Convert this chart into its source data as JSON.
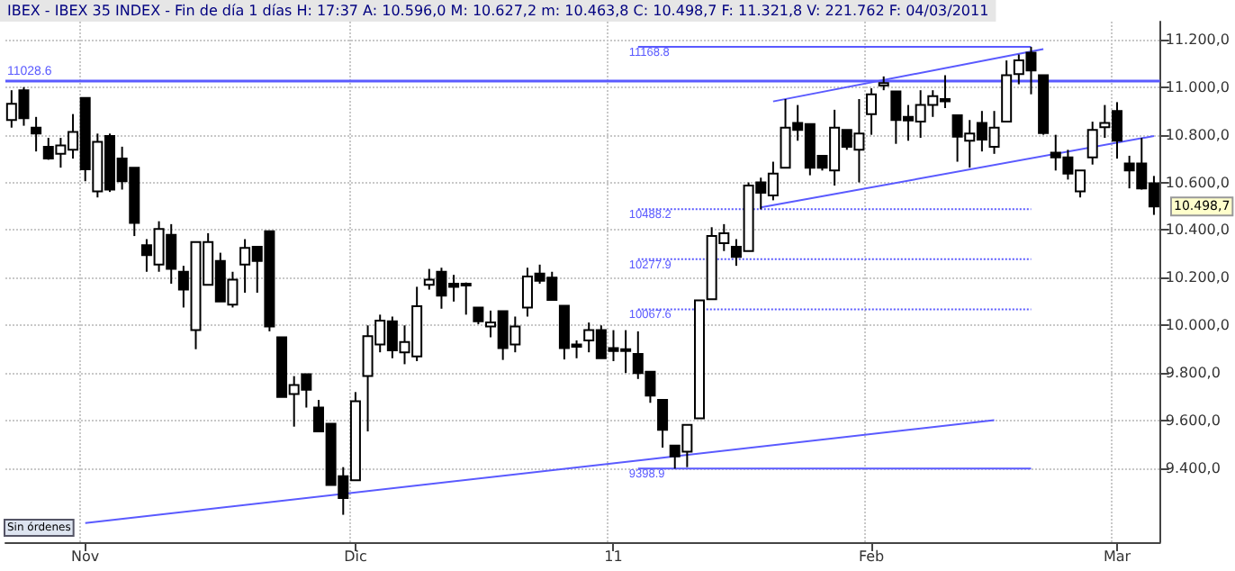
{
  "chart_data": {
    "type": "candlestick",
    "title": "IBEX - IBEX 35 INDEX - Fin de día 1 días H: 17:37 A: 10.596,0 M: 10.627,2 m: 10.463,8 C: 10.498,7 F: 11.321,8 V: 221.762 F: 04/03/2011",
    "categories": [
      null,
      null,
      null,
      null,
      null,
      null,
      "Nov",
      null,
      null,
      null,
      null,
      null,
      null,
      null,
      null,
      null,
      null,
      null,
      null,
      null,
      null,
      null,
      null,
      null,
      null,
      null,
      null,
      null,
      "Dic",
      null,
      null,
      null,
      null,
      null,
      null,
      null,
      null,
      null,
      null,
      null,
      null,
      null,
      null,
      null,
      null,
      null,
      null,
      null,
      null,
      "11",
      null,
      null,
      null,
      null,
      null,
      null,
      null,
      null,
      null,
      null,
      null,
      null,
      null,
      null,
      null,
      null,
      null,
      null,
      null,
      null,
      "Feb",
      null,
      null,
      null,
      null,
      null,
      null,
      null,
      null,
      null,
      null,
      null,
      null,
      null,
      null,
      null,
      null,
      null,
      null,
      null,
      "Mar",
      null,
      null,
      null
    ],
    "color": "#000000",
    "ohlc": [
      [
        10862,
        10987,
        10830,
        10930
      ],
      [
        10987,
        11000,
        10838,
        10870
      ],
      [
        10830,
        10875,
        10730,
        10805
      ],
      [
        10750,
        10787,
        10695,
        10700
      ],
      [
        10720,
        10787,
        10662,
        10755
      ],
      [
        10737,
        10887,
        10700,
        10812
      ],
      [
        10955,
        10955,
        10605,
        10655
      ],
      [
        10562,
        10805,
        10537,
        10770
      ],
      [
        10795,
        10805,
        10560,
        10570
      ],
      [
        10700,
        10750,
        10570,
        10605
      ],
      [
        10662,
        10662,
        10375,
        10430
      ],
      [
        10337,
        10362,
        10225,
        10295
      ],
      [
        10255,
        10437,
        10225,
        10405
      ],
      [
        10380,
        10425,
        10175,
        10237
      ],
      [
        10225,
        10250,
        10075,
        10150
      ],
      [
        9980,
        10350,
        9900,
        10350
      ],
      [
        10170,
        10387,
        10170,
        10350
      ],
      [
        10270,
        10305,
        10100,
        10100
      ],
      [
        10087,
        10225,
        10075,
        10192
      ],
      [
        10255,
        10362,
        10137,
        10325
      ],
      [
        10330,
        10330,
        10137,
        10270
      ],
      [
        10395,
        10395,
        9975,
        9995
      ],
      [
        9950,
        9950,
        9700,
        9700
      ],
      [
        9712,
        9787,
        9575,
        9750
      ],
      [
        9795,
        9795,
        9655,
        9730
      ],
      [
        9655,
        9687,
        9555,
        9555
      ],
      [
        9587,
        9587,
        9330,
        9330
      ],
      [
        9367,
        9405,
        9205,
        9275
      ],
      [
        9350,
        9720,
        9350,
        9682
      ],
      [
        9787,
        10000,
        9555,
        9955
      ],
      [
        9920,
        10045,
        9887,
        10020
      ],
      [
        10017,
        10037,
        9862,
        9895
      ],
      [
        9887,
        10000,
        9837,
        9930
      ],
      [
        9870,
        10162,
        9850,
        10080
      ],
      [
        10170,
        10237,
        10150,
        10192
      ],
      [
        10225,
        10242,
        10070,
        10125
      ],
      [
        10175,
        10212,
        10100,
        10162
      ],
      [
        10175,
        10180,
        10045,
        10170
      ],
      [
        10075,
        10075,
        10005,
        10017
      ],
      [
        9995,
        10062,
        9950,
        10012
      ],
      [
        10060,
        10060,
        9855,
        9905
      ],
      [
        9920,
        10037,
        9887,
        9995
      ],
      [
        10075,
        10242,
        10037,
        10205
      ],
      [
        10217,
        10255,
        10175,
        10187
      ],
      [
        10200,
        10225,
        10107,
        10107
      ],
      [
        10082,
        10082,
        9857,
        9905
      ],
      [
        9920,
        9937,
        9862,
        9910
      ],
      [
        9937,
        10012,
        9887,
        9980
      ],
      [
        9980,
        10000,
        9862,
        9862
      ],
      [
        9905,
        9980,
        9850,
        9892
      ],
      [
        9900,
        9980,
        9800,
        9895
      ],
      [
        9880,
        9975,
        9775,
        9800
      ],
      [
        9805,
        9805,
        9675,
        9705
      ],
      [
        9687,
        9687,
        9487,
        9562
      ],
      [
        9495,
        9495,
        9398.9,
        9450
      ],
      [
        9470,
        9582,
        9405,
        9582
      ],
      [
        9610,
        10105,
        9610,
        10105
      ],
      [
        10110,
        10412,
        10110,
        10375
      ],
      [
        10345,
        10425,
        10312,
        10387
      ],
      [
        10330,
        10362,
        10250,
        10287
      ],
      [
        10312,
        10600,
        10312,
        10587
      ],
      [
        10600,
        10620,
        10487,
        10557
      ],
      [
        10545,
        10687,
        10525,
        10637
      ],
      [
        10662,
        10950,
        10662,
        10830
      ],
      [
        10850,
        10925,
        10775,
        10820
      ],
      [
        10845,
        10845,
        10630,
        10662
      ],
      [
        10712,
        10712,
        10650,
        10662
      ],
      [
        10650,
        10905,
        10587,
        10830
      ],
      [
        10820,
        10820,
        10737,
        10750
      ],
      [
        10737,
        10950,
        10600,
        10805
      ],
      [
        10887,
        10995,
        10800,
        10970
      ],
      [
        11007,
        11045,
        10987,
        11017
      ],
      [
        10982,
        10982,
        10762,
        10862
      ],
      [
        10875,
        10925,
        10775,
        10860
      ],
      [
        10855,
        10987,
        10787,
        10925
      ],
      [
        10925,
        10987,
        10875,
        10962
      ],
      [
        10950,
        11050,
        10912,
        10940
      ],
      [
        10882,
        10882,
        10687,
        10792
      ],
      [
        10775,
        10862,
        10662,
        10805
      ],
      [
        10850,
        10900,
        10730,
        10780
      ],
      [
        10750,
        10900,
        10720,
        10830
      ],
      [
        10855,
        11112,
        10855,
        11050
      ],
      [
        11055,
        11137,
        11012,
        11112
      ],
      [
        11145,
        11168.8,
        10970,
        11070
      ],
      [
        11050,
        11050,
        10800,
        10807
      ],
      [
        10725,
        10800,
        10650,
        10705
      ],
      [
        10705,
        10737,
        10612,
        10637
      ],
      [
        10562,
        10650,
        10537,
        10650
      ],
      [
        10705,
        10855,
        10675,
        10820
      ],
      [
        10832,
        10925,
        10787,
        10850
      ],
      [
        10900,
        10937,
        10700,
        10775
      ],
      [
        10680,
        10712,
        10575,
        10650
      ],
      [
        10680,
        10787,
        10570,
        10575
      ],
      [
        10596,
        10627.2,
        10463.8,
        10498.7
      ]
    ],
    "series": [
      {
        "type": "line",
        "color": "#5a5aff",
        "line_style": "solid",
        "values": [
          null,
          null,
          null,
          null,
          null,
          null,
          9170,
          null,
          null,
          null,
          null,
          null,
          null,
          null,
          null,
          null,
          null,
          null,
          null,
          null,
          null,
          null,
          null,
          null,
          null,
          null,
          null,
          null,
          null,
          null,
          null,
          null,
          null,
          null,
          null,
          null,
          null,
          null,
          null,
          null,
          null,
          null,
          null,
          null,
          null,
          null,
          null,
          null,
          null,
          null,
          null,
          null,
          null,
          null,
          null,
          null,
          null,
          null,
          null,
          null,
          null,
          null,
          null,
          null,
          null,
          null,
          null,
          null,
          null,
          null,
          null,
          null,
          null,
          null,
          null,
          null,
          null,
          null,
          null,
          null,
          9602,
          null,
          null,
          null,
          null,
          null,
          null,
          null,
          null,
          null,
          null,
          null,
          null,
          null
        ]
      },
      {
        "type": "line",
        "color": "#5a5aff",
        "line_style": "solid",
        "values": [
          null,
          null,
          null,
          null,
          null,
          null,
          null,
          null,
          null,
          null,
          null,
          null,
          null,
          null,
          null,
          null,
          null,
          null,
          null,
          null,
          null,
          null,
          null,
          null,
          null,
          null,
          null,
          null,
          null,
          null,
          null,
          null,
          null,
          null,
          null,
          null,
          null,
          null,
          null,
          null,
          null,
          null,
          null,
          null,
          null,
          null,
          null,
          null,
          null,
          null,
          null,
          null,
          null,
          null,
          null,
          null,
          null,
          null,
          null,
          null,
          null,
          null,
          10940,
          null,
          null,
          null,
          null,
          null,
          null,
          null,
          null,
          null,
          null,
          null,
          null,
          null,
          null,
          null,
          null,
          null,
          null,
          null,
          null,
          null,
          11160,
          null,
          null,
          null,
          null,
          null,
          null,
          null,
          null,
          null
        ]
      },
      {
        "type": "line",
        "color": "#5a5aff",
        "line_style": "solid",
        "values": [
          null,
          null,
          null,
          null,
          null,
          null,
          null,
          null,
          null,
          null,
          null,
          null,
          null,
          null,
          null,
          null,
          null,
          null,
          null,
          null,
          null,
          null,
          null,
          null,
          null,
          null,
          null,
          null,
          null,
          null,
          null,
          null,
          null,
          null,
          null,
          null,
          null,
          null,
          null,
          null,
          null,
          null,
          null,
          null,
          null,
          null,
          null,
          null,
          null,
          null,
          null,
          null,
          null,
          null,
          null,
          null,
          null,
          null,
          null,
          null,
          null,
          10495,
          null,
          null,
          null,
          null,
          null,
          null,
          null,
          null,
          null,
          null,
          null,
          null,
          null,
          null,
          null,
          null,
          null,
          null,
          null,
          null,
          null,
          null,
          null,
          null,
          null,
          null,
          null,
          null,
          null,
          null,
          null,
          10795
        ]
      },
      {
        "type": "line",
        "name": "11168.8",
        "color": "#5a5aff",
        "line_style": "solid",
        "values": [
          null,
          null,
          null,
          null,
          null,
          null,
          null,
          null,
          null,
          null,
          null,
          null,
          null,
          null,
          null,
          null,
          null,
          null,
          null,
          null,
          null,
          null,
          null,
          null,
          null,
          null,
          null,
          null,
          null,
          null,
          null,
          null,
          null,
          null,
          null,
          null,
          null,
          null,
          null,
          null,
          null,
          null,
          null,
          null,
          null,
          null,
          null,
          null,
          null,
          null,
          null,
          11168.8,
          null,
          null,
          null,
          null,
          null,
          null,
          null,
          null,
          null,
          null,
          null,
          null,
          null,
          null,
          null,
          null,
          null,
          null,
          null,
          null,
          null,
          null,
          null,
          null,
          null,
          null,
          null,
          null,
          null,
          null,
          null,
          11168.8,
          null,
          null,
          null,
          null,
          null,
          null,
          null,
          null,
          null,
          null
        ]
      },
      {
        "type": "line",
        "name": "10488.2",
        "color": "#5a5aff",
        "line_style": "dotted",
        "values": [
          null,
          null,
          null,
          null,
          null,
          null,
          null,
          null,
          null,
          null,
          null,
          null,
          null,
          null,
          null,
          null,
          null,
          null,
          null,
          null,
          null,
          null,
          null,
          null,
          null,
          null,
          null,
          null,
          null,
          null,
          null,
          null,
          null,
          null,
          null,
          null,
          null,
          null,
          null,
          null,
          null,
          null,
          null,
          null,
          null,
          null,
          null,
          null,
          null,
          null,
          null,
          10488.2,
          null,
          null,
          null,
          null,
          null,
          null,
          null,
          null,
          null,
          null,
          null,
          null,
          null,
          null,
          null,
          null,
          null,
          null,
          null,
          null,
          null,
          null,
          null,
          null,
          null,
          null,
          null,
          null,
          null,
          null,
          null,
          10488.2,
          null,
          null,
          null,
          null,
          null,
          null,
          null,
          null,
          null,
          null
        ]
      },
      {
        "type": "line",
        "name": "10277.9",
        "color": "#5a5aff",
        "line_style": "dotted",
        "values": [
          null,
          null,
          null,
          null,
          null,
          null,
          null,
          null,
          null,
          null,
          null,
          null,
          null,
          null,
          null,
          null,
          null,
          null,
          null,
          null,
          null,
          null,
          null,
          null,
          null,
          null,
          null,
          null,
          null,
          null,
          null,
          null,
          null,
          null,
          null,
          null,
          null,
          null,
          null,
          null,
          null,
          null,
          null,
          null,
          null,
          null,
          null,
          null,
          null,
          null,
          null,
          10277.9,
          null,
          null,
          null,
          null,
          null,
          null,
          null,
          null,
          null,
          null,
          null,
          null,
          null,
          null,
          null,
          null,
          null,
          null,
          null,
          null,
          null,
          null,
          null,
          null,
          null,
          null,
          null,
          null,
          null,
          null,
          null,
          10277.9,
          null,
          null,
          null,
          null,
          null,
          null,
          null,
          null,
          null,
          null
        ]
      },
      {
        "type": "line",
        "name": "10067.6",
        "color": "#5a5aff",
        "line_style": "dotted",
        "values": [
          null,
          null,
          null,
          null,
          null,
          null,
          null,
          null,
          null,
          null,
          null,
          null,
          null,
          null,
          null,
          null,
          null,
          null,
          null,
          null,
          null,
          null,
          null,
          null,
          null,
          null,
          null,
          null,
          null,
          null,
          null,
          null,
          null,
          null,
          null,
          null,
          null,
          null,
          null,
          null,
          null,
          null,
          null,
          null,
          null,
          null,
          null,
          null,
          null,
          null,
          null,
          10067.6,
          null,
          null,
          null,
          null,
          null,
          null,
          null,
          null,
          null,
          null,
          null,
          null,
          null,
          null,
          null,
          null,
          null,
          null,
          null,
          null,
          null,
          null,
          null,
          null,
          null,
          null,
          null,
          null,
          null,
          null,
          null,
          10067.6,
          null,
          null,
          null,
          null,
          null,
          null,
          null,
          null,
          null,
          null
        ]
      },
      {
        "type": "line",
        "name": "9398.9",
        "color": "#5a5aff",
        "line_style": "solid",
        "values": [
          null,
          null,
          null,
          null,
          null,
          null,
          null,
          null,
          null,
          null,
          null,
          null,
          null,
          null,
          null,
          null,
          null,
          null,
          null,
          null,
          null,
          null,
          null,
          null,
          null,
          null,
          null,
          null,
          null,
          null,
          null,
          null,
          null,
          null,
          null,
          null,
          null,
          null,
          null,
          null,
          null,
          null,
          null,
          null,
          null,
          null,
          null,
          null,
          null,
          null,
          null,
          9398.9,
          null,
          null,
          null,
          null,
          null,
          null,
          null,
          null,
          null,
          null,
          null,
          null,
          null,
          null,
          null,
          null,
          null,
          null,
          null,
          null,
          null,
          null,
          null,
          null,
          null,
          null,
          null,
          null,
          null,
          null,
          null,
          9398.9,
          null,
          null,
          null,
          null,
          null,
          null,
          null,
          null,
          null,
          null
        ]
      }
    ],
    "ylim": [
      9090,
      11275
    ],
    "yticks": [
      {
        "value": 9400,
        "label": "9.400,0"
      },
      {
        "value": 9600,
        "label": "9.600,0"
      },
      {
        "value": 9800,
        "label": "9.800,0"
      },
      {
        "value": 10000,
        "label": "10.000,0"
      },
      {
        "value": 10200,
        "label": "10.200,0"
      },
      {
        "value": 10400,
        "label": "10.400,0"
      },
      {
        "value": 10600,
        "label": "10.600,0"
      },
      {
        "value": 10800,
        "label": "10.800,0"
      },
      {
        "value": 11000,
        "label": "11.000,0"
      },
      {
        "value": 11200,
        "label": "11.200,0"
      }
    ],
    "ref_lines": [
      {
        "axis": "y",
        "value": 11028.6,
        "label": "11028.6",
        "color": "#5a5aff"
      }
    ],
    "annotations": [
      "10.498,7",
      "Sin órdenes"
    ],
    "grid": true,
    "legend": false,
    "marker": "none"
  }
}
